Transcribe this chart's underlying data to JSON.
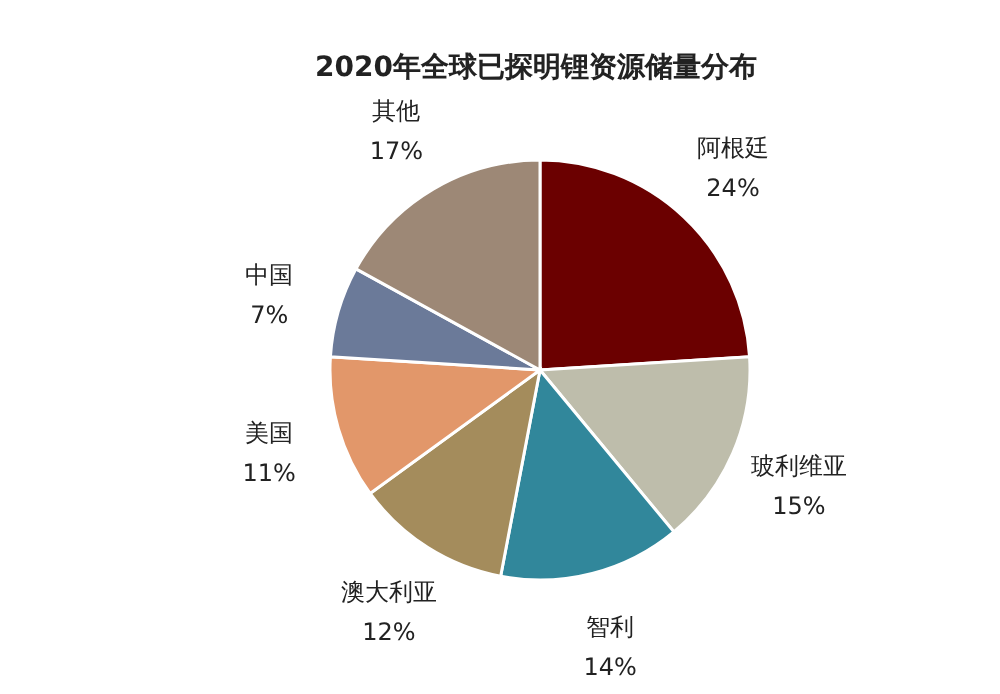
{
  "chart_data": {
    "type": "pie",
    "title": "2020年全球已探明锂资源储量分布",
    "categories": [
      "阿根廷",
      "玻利维亚",
      "智利",
      "澳大利亚",
      "美国",
      "中国",
      "其他"
    ],
    "values": [
      24,
      15,
      14,
      12,
      11,
      7,
      17
    ],
    "colors": [
      "#6b0000",
      "#bebdab",
      "#31879b",
      "#a48c5c",
      "#e2976a",
      "#6b7a99",
      "#9d8876"
    ],
    "value_labels": [
      "24%",
      "15%",
      "14%",
      "12%",
      "11%",
      "7%",
      "17%"
    ]
  }
}
